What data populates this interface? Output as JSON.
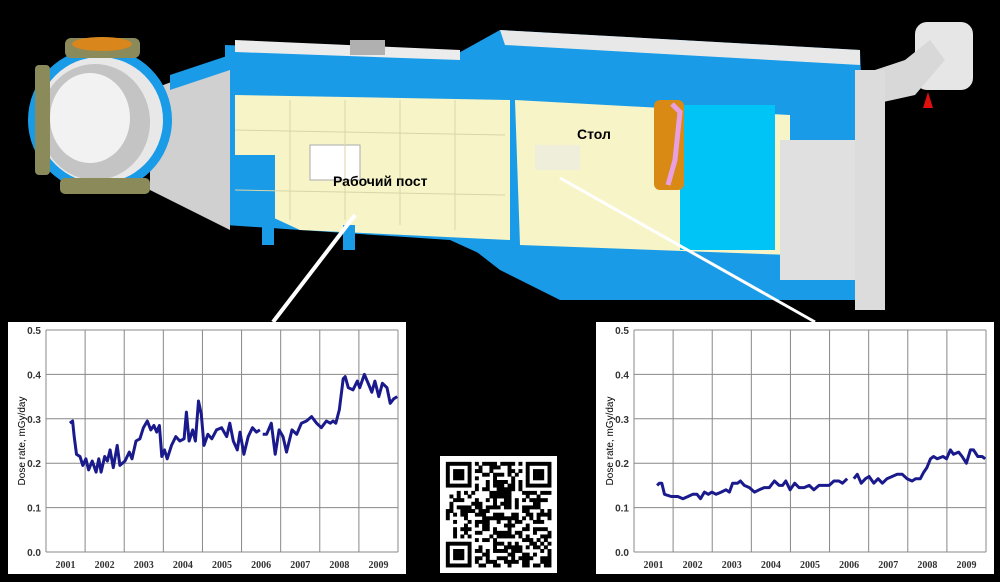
{
  "scene": {
    "labels": {
      "workstation": "Рабочий пост",
      "table": "Стол"
    },
    "colors": {
      "hull_blue": "#1a9be8",
      "interior_cream": "#f7f5c8",
      "white_hull": "#e8e8e8",
      "panel_cyan": "#00c4f5",
      "hatch_orange": "#d9861c",
      "callout_line": "#ffffff"
    }
  },
  "chart_data": [
    {
      "type": "line",
      "title": "",
      "xlabel": "",
      "ylabel": "Dose rate, mGy/day",
      "xlim": [
        2001,
        2010
      ],
      "ylim": [
        0,
        0.5
      ],
      "x_tick_labels": [
        "2001",
        "2002",
        "2003",
        "2004",
        "2005",
        "2006",
        "2007",
        "2008",
        "2009"
      ],
      "y_tick_labels": [
        "0.0",
        "0.1",
        "0.2",
        "0.3",
        "0.4",
        "0.5"
      ],
      "grid": true,
      "line_color": "#1a1a8c",
      "segments": [
        [
          [
            2001.61,
            0.29
          ],
          [
            2001.68,
            0.295
          ],
          [
            2001.72,
            0.26
          ],
          [
            2001.78,
            0.22
          ],
          [
            2001.87,
            0.215
          ],
          [
            2001.94,
            0.195
          ],
          [
            2002.02,
            0.21
          ],
          [
            2002.09,
            0.185
          ],
          [
            2002.18,
            0.205
          ],
          [
            2002.28,
            0.18
          ],
          [
            2002.35,
            0.21
          ],
          [
            2002.41,
            0.18
          ],
          [
            2002.5,
            0.215
          ],
          [
            2002.57,
            0.205
          ],
          [
            2002.64,
            0.23
          ],
          [
            2002.72,
            0.19
          ],
          [
            2002.82,
            0.24
          ],
          [
            2002.89,
            0.195
          ],
          [
            2003.02,
            0.205
          ],
          [
            2003.13,
            0.225
          ],
          [
            2003.2,
            0.21
          ],
          [
            2003.3,
            0.25
          ],
          [
            2003.4,
            0.255
          ],
          [
            2003.49,
            0.28
          ],
          [
            2003.59,
            0.295
          ],
          [
            2003.68,
            0.275
          ],
          [
            2003.76,
            0.285
          ],
          [
            2003.83,
            0.27
          ],
          [
            2003.9,
            0.285
          ],
          [
            2003.96,
            0.215
          ],
          [
            2004.03,
            0.23
          ],
          [
            2004.1,
            0.21
          ],
          [
            2004.21,
            0.24
          ],
          [
            2004.32,
            0.26
          ],
          [
            2004.42,
            0.25
          ],
          [
            2004.53,
            0.255
          ],
          [
            2004.59,
            0.315
          ],
          [
            2004.66,
            0.25
          ],
          [
            2004.75,
            0.275
          ],
          [
            2004.82,
            0.25
          ],
          [
            2004.9,
            0.34
          ],
          [
            2004.97,
            0.31
          ],
          [
            2005.04,
            0.24
          ],
          [
            2005.14,
            0.265
          ],
          [
            2005.24,
            0.255
          ],
          [
            2005.36,
            0.275
          ],
          [
            2005.49,
            0.28
          ],
          [
            2005.62,
            0.26
          ],
          [
            2005.7,
            0.29
          ],
          [
            2005.79,
            0.25
          ],
          [
            2005.89,
            0.23
          ],
          [
            2005.96,
            0.27
          ],
          [
            2006.06,
            0.22
          ],
          [
            2006.17,
            0.26
          ],
          [
            2006.28,
            0.28
          ],
          [
            2006.38,
            0.27
          ],
          [
            2006.47,
            0.275
          ]
        ],
        [
          [
            2006.54,
            0.265
          ],
          [
            2006.64,
            0.265
          ],
          [
            2006.76,
            0.29
          ],
          [
            2006.86,
            0.22
          ],
          [
            2006.96,
            0.275
          ],
          [
            2007.06,
            0.26
          ],
          [
            2007.15,
            0.225
          ],
          [
            2007.29,
            0.275
          ],
          [
            2007.41,
            0.265
          ],
          [
            2007.53,
            0.29
          ],
          [
            2007.66,
            0.295
          ],
          [
            2007.79,
            0.305
          ],
          [
            2007.92,
            0.29
          ],
          [
            2008.04,
            0.28
          ],
          [
            2008.17,
            0.295
          ],
          [
            2008.27,
            0.29
          ],
          [
            2008.34,
            0.295
          ],
          [
            2008.41,
            0.29
          ],
          [
            2008.5,
            0.32
          ],
          [
            2008.6,
            0.39
          ],
          [
            2008.65,
            0.395
          ],
          [
            2008.73,
            0.37
          ],
          [
            2008.85,
            0.365
          ],
          [
            2008.96,
            0.385
          ],
          [
            2009.02,
            0.37
          ],
          [
            2009.14,
            0.4
          ],
          [
            2009.26,
            0.375
          ],
          [
            2009.33,
            0.36
          ],
          [
            2009.41,
            0.385
          ],
          [
            2009.51,
            0.35
          ],
          [
            2009.6,
            0.38
          ],
          [
            2009.72,
            0.37
          ],
          [
            2009.8,
            0.335
          ],
          [
            2009.89,
            0.345
          ],
          [
            2009.98,
            0.35
          ]
        ]
      ]
    },
    {
      "type": "line",
      "title": "",
      "xlabel": "",
      "ylabel": "Dose rate, mGy/day",
      "xlim": [
        2001,
        2010
      ],
      "ylim": [
        0,
        0.5
      ],
      "x_tick_labels": [
        "2001",
        "2002",
        "2003",
        "2004",
        "2005",
        "2006",
        "2007",
        "2008",
        "2009"
      ],
      "y_tick_labels": [
        "0.0",
        "0.1",
        "0.2",
        "0.3",
        "0.4",
        "0.5"
      ],
      "grid": true,
      "line_color": "#1a1a8c",
      "segments": [
        [
          [
            2001.59,
            0.15
          ],
          [
            2001.65,
            0.155
          ],
          [
            2001.71,
            0.155
          ],
          [
            2001.78,
            0.13
          ],
          [
            2001.95,
            0.125
          ],
          [
            2002.12,
            0.125
          ],
          [
            2002.25,
            0.12
          ],
          [
            2002.38,
            0.125
          ],
          [
            2002.5,
            0.13
          ],
          [
            2002.61,
            0.13
          ],
          [
            2002.7,
            0.12
          ],
          [
            2002.8,
            0.135
          ],
          [
            2002.9,
            0.13
          ],
          [
            2002.99,
            0.135
          ],
          [
            2003.1,
            0.13
          ],
          [
            2003.23,
            0.135
          ],
          [
            2003.35,
            0.14
          ],
          [
            2003.44,
            0.135
          ],
          [
            2003.52,
            0.155
          ],
          [
            2003.65,
            0.155
          ],
          [
            2003.72,
            0.16
          ],
          [
            2003.82,
            0.15
          ],
          [
            2003.95,
            0.145
          ],
          [
            2004.08,
            0.135
          ],
          [
            2004.2,
            0.14
          ],
          [
            2004.33,
            0.145
          ],
          [
            2004.46,
            0.145
          ],
          [
            2004.59,
            0.16
          ],
          [
            2004.71,
            0.15
          ],
          [
            2004.8,
            0.15
          ],
          [
            2004.88,
            0.16
          ],
          [
            2004.99,
            0.14
          ],
          [
            2005.11,
            0.155
          ],
          [
            2005.22,
            0.145
          ],
          [
            2005.35,
            0.145
          ],
          [
            2005.48,
            0.15
          ],
          [
            2005.6,
            0.14
          ],
          [
            2005.73,
            0.15
          ],
          [
            2005.86,
            0.15
          ],
          [
            2005.99,
            0.15
          ],
          [
            2006.11,
            0.16
          ],
          [
            2006.24,
            0.16
          ],
          [
            2006.33,
            0.155
          ],
          [
            2006.45,
            0.165
          ]
        ],
        [
          [
            2006.62,
            0.165
          ],
          [
            2006.71,
            0.175
          ],
          [
            2006.81,
            0.155
          ],
          [
            2006.92,
            0.165
          ],
          [
            2007.01,
            0.17
          ],
          [
            2007.13,
            0.155
          ],
          [
            2007.24,
            0.165
          ],
          [
            2007.35,
            0.155
          ],
          [
            2007.47,
            0.165
          ],
          [
            2007.6,
            0.17
          ],
          [
            2007.73,
            0.175
          ],
          [
            2007.86,
            0.175
          ],
          [
            2007.98,
            0.165
          ],
          [
            2008.11,
            0.16
          ],
          [
            2008.2,
            0.165
          ],
          [
            2008.32,
            0.165
          ],
          [
            2008.41,
            0.18
          ],
          [
            2008.49,
            0.19
          ],
          [
            2008.58,
            0.21
          ],
          [
            2008.66,
            0.215
          ],
          [
            2008.75,
            0.21
          ],
          [
            2008.9,
            0.215
          ],
          [
            2008.99,
            0.21
          ],
          [
            2009.09,
            0.23
          ],
          [
            2009.17,
            0.22
          ],
          [
            2009.3,
            0.225
          ],
          [
            2009.39,
            0.215
          ],
          [
            2009.5,
            0.2
          ],
          [
            2009.6,
            0.23
          ],
          [
            2009.68,
            0.23
          ],
          [
            2009.79,
            0.215
          ],
          [
            2009.9,
            0.215
          ],
          [
            2009.98,
            0.21
          ]
        ]
      ]
    }
  ],
  "qr_code": {
    "icon": "qr-code-icon"
  }
}
